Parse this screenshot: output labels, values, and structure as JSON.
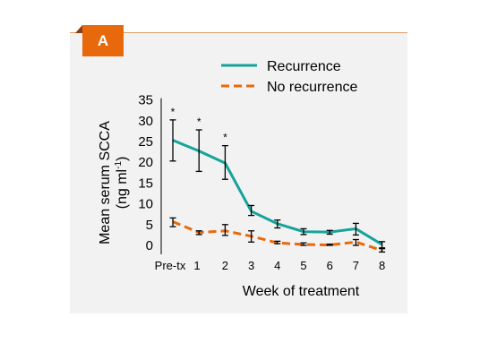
{
  "panel": {
    "badge": "A"
  },
  "chart_data": {
    "type": "line",
    "categories": [
      "Pre-tx",
      "1",
      "2",
      "3",
      "4",
      "5",
      "6",
      "7",
      "8"
    ],
    "xlabel": "Week of treatment",
    "ylabel_line1": "Mean serum SCCA",
    "ylabel_line2": "(ng ml",
    "ylabel_sup": "-1",
    "ylabel_close": ")",
    "ylim": [
      0,
      35
    ],
    "yticks": [
      "0",
      "5",
      "10",
      "15",
      "20",
      "25",
      "30",
      "35"
    ],
    "ytick_values": [
      0,
      5,
      10,
      15,
      20,
      25,
      30,
      35
    ],
    "legend_position": "top",
    "significance_marker": "*",
    "significant_categories": [
      "Pre-tx",
      "1",
      "2"
    ],
    "series": [
      {
        "name": "Recurrence",
        "color": "#16a39b",
        "style": "solid",
        "values": [
          25.3,
          22.7,
          19.8,
          8.2,
          5.2,
          3.3,
          3.2,
          4.0,
          0.2
        ],
        "err_low": [
          20.3,
          17.8,
          15.9,
          7.2,
          4.2,
          2.6,
          2.7,
          2.5,
          -0.8
        ],
        "err_high": [
          30.2,
          27.8,
          24.0,
          9.6,
          6.1,
          4.0,
          3.6,
          5.3,
          0.9
        ]
      },
      {
        "name": "No recurrence",
        "color": "#e8690b",
        "style": "dashed",
        "values": [
          5.7,
          3.1,
          3.5,
          2.2,
          0.6,
          0.2,
          0.1,
          0.8,
          -1.2
        ],
        "err_low": [
          4.5,
          2.6,
          2.4,
          0.8,
          0.4,
          0.0,
          0.0,
          0.0,
          -1.6
        ],
        "err_high": [
          6.6,
          3.5,
          5.0,
          3.5,
          1.0,
          0.6,
          0.3,
          1.4,
          -0.6
        ]
      }
    ]
  }
}
